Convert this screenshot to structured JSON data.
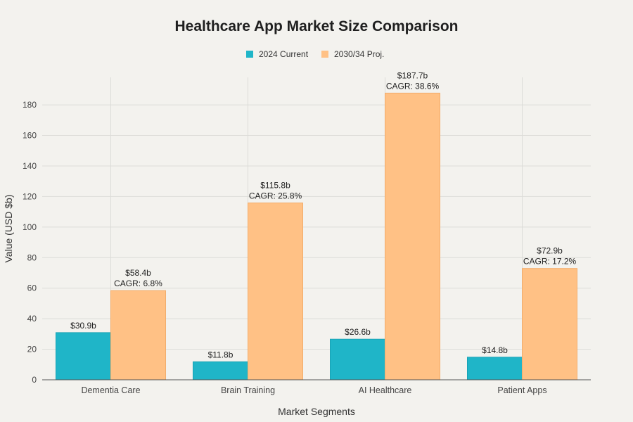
{
  "chart_data": {
    "type": "bar",
    "title": "Healthcare App Market Size Comparison",
    "xlabel": "Market Segments",
    "ylabel": "Value (USD $b)",
    "categories": [
      "Dementia Care",
      "Brain Training",
      "AI Healthcare",
      "Patient Apps"
    ],
    "series": [
      {
        "name": "2024 Current",
        "color": "#1fb5c8",
        "values": [
          30.9,
          11.8,
          26.6,
          14.8
        ],
        "labels": [
          [
            "$30.9b"
          ],
          [
            "$11.8b"
          ],
          [
            "$26.6b"
          ],
          [
            "$14.8b"
          ]
        ]
      },
      {
        "name": "2030/34 Proj.",
        "color": "#ffc185",
        "values": [
          58.4,
          115.8,
          187.7,
          72.9
        ],
        "labels": [
          [
            "$58.4b",
            "CAGR: 6.8%"
          ],
          [
            "$115.8b",
            "CAGR: 25.8%"
          ],
          [
            "$187.7b",
            "CAGR: 38.6%"
          ],
          [
            "$72.9b",
            "CAGR: 17.2%"
          ]
        ]
      }
    ],
    "ylim": [
      0,
      198
    ],
    "yticks": [
      0,
      20,
      40,
      60,
      80,
      100,
      120,
      140,
      160,
      180
    ],
    "grid": true,
    "legend_position": "top-center"
  }
}
